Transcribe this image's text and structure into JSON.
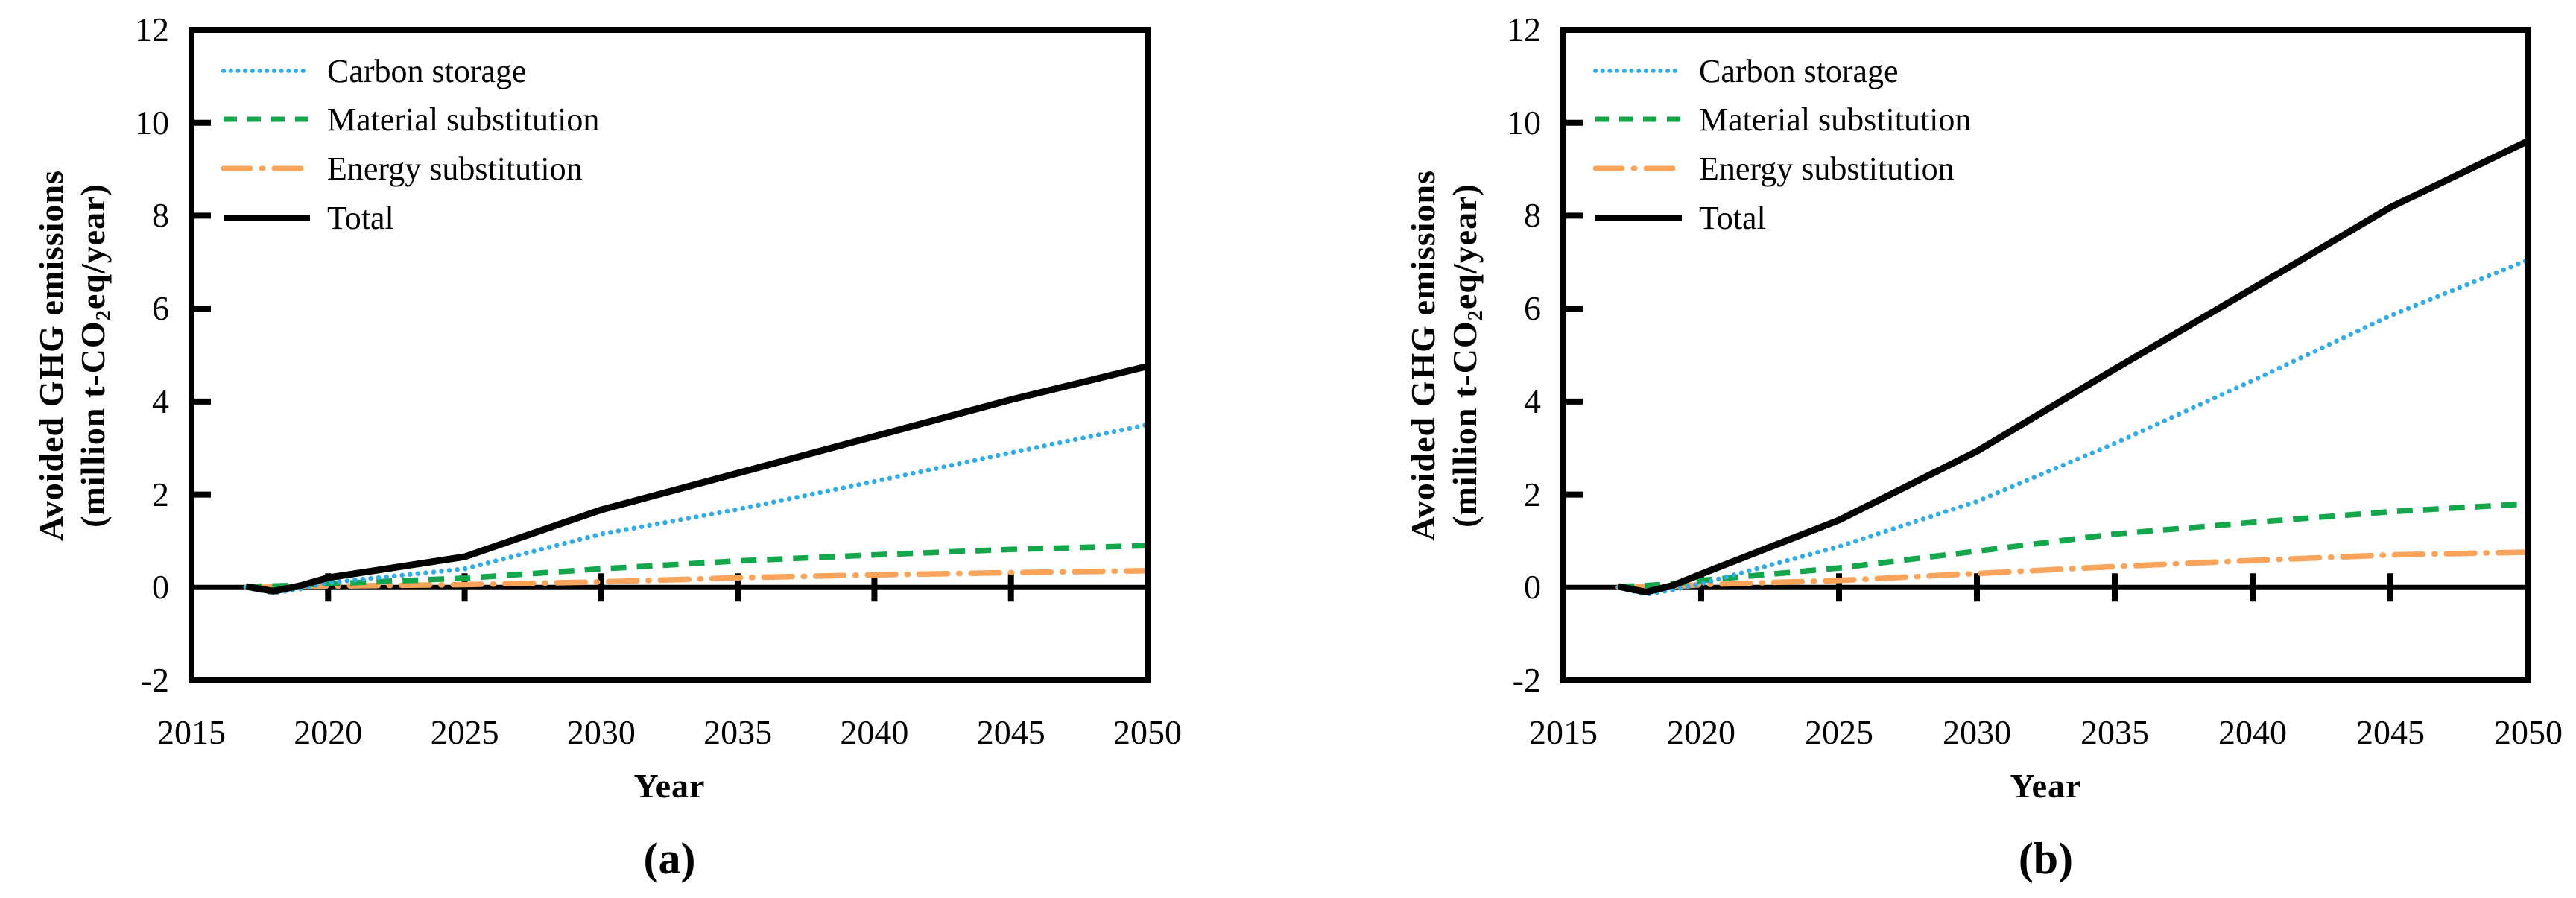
{
  "figure": {
    "y_axis_title_line1": "Avoided GHG emissions",
    "y_axis_title_line2_prefix": "(million t-CO",
    "y_axis_title_line2_sub": "2",
    "y_axis_title_line2_suffix": "eq/year)",
    "x_axis_title": "Year",
    "y_ticks": [
      12,
      10,
      8,
      6,
      4,
      2,
      0,
      -2
    ],
    "x_ticks": [
      2015,
      2020,
      2025,
      2030,
      2035,
      2040,
      2045,
      2050
    ]
  },
  "legend": {
    "position": "top-left-inside",
    "items": [
      {
        "key": "carbon",
        "label": "Carbon storage",
        "color": "#33ACE3"
      },
      {
        "key": "material",
        "label": "Material substitution",
        "color": "#13A64B"
      },
      {
        "key": "energy",
        "label": "Energy substitution",
        "color": "#F9A45A"
      },
      {
        "key": "total",
        "label": "Total",
        "color": "#000000"
      }
    ]
  },
  "chart_data": [
    {
      "type": "line",
      "panel_label": "(a)",
      "xlabel": "Year",
      "ylabel": "Avoided GHG emissions (million t-CO2eq/year)",
      "xlim": [
        2015,
        2050
      ],
      "ylim": [
        -2,
        12
      ],
      "grid": false,
      "x": [
        2017,
        2018,
        2019,
        2020,
        2025,
        2030,
        2035,
        2040,
        2045,
        2050
      ],
      "series": [
        {
          "name": "Carbon storage",
          "key": "carbon",
          "color": "#33ACE3",
          "values": [
            0,
            -0.12,
            -0.03,
            0.1,
            0.4,
            1.15,
            1.68,
            2.28,
            2.9,
            3.5
          ]
        },
        {
          "name": "Material substitution",
          "key": "material",
          "color": "#13A64B",
          "values": [
            0.02,
            0.03,
            0.05,
            0.08,
            0.2,
            0.4,
            0.57,
            0.7,
            0.82,
            0.9
          ]
        },
        {
          "name": "Energy substitution",
          "key": "energy",
          "color": "#F9A45A",
          "values": [
            0,
            0.01,
            0.02,
            0.03,
            0.06,
            0.12,
            0.21,
            0.27,
            0.32,
            0.36
          ]
        },
        {
          "name": "Total",
          "key": "total",
          "color": "#000000",
          "values": [
            0.02,
            -0.08,
            0.04,
            0.21,
            0.66,
            1.67,
            2.46,
            3.25,
            4.04,
            4.76
          ]
        }
      ]
    },
    {
      "type": "line",
      "panel_label": "(b)",
      "xlabel": "Year",
      "ylabel": "Avoided GHG emissions (million t-CO2eq/year)",
      "xlim": [
        2015,
        2050
      ],
      "ylim": [
        -2,
        12
      ],
      "grid": false,
      "x": [
        2017,
        2018,
        2019,
        2020,
        2025,
        2030,
        2035,
        2040,
        2045,
        2050
      ],
      "series": [
        {
          "name": "Carbon storage",
          "key": "carbon",
          "color": "#33ACE3",
          "values": [
            0,
            -0.15,
            -0.05,
            0.08,
            0.88,
            1.85,
            3.1,
            4.45,
            5.85,
            7.05
          ]
        },
        {
          "name": "Material substitution",
          "key": "material",
          "color": "#13A64B",
          "values": [
            0.02,
            0.04,
            0.08,
            0.15,
            0.42,
            0.78,
            1.15,
            1.4,
            1.63,
            1.8
          ]
        },
        {
          "name": "Energy substitution",
          "key": "energy",
          "color": "#F9A45A",
          "values": [
            0,
            0.01,
            0.02,
            0.06,
            0.15,
            0.3,
            0.45,
            0.58,
            0.7,
            0.76
          ]
        },
        {
          "name": "Total",
          "key": "total",
          "color": "#000000",
          "values": [
            0.02,
            -0.1,
            0.05,
            0.29,
            1.45,
            2.93,
            4.7,
            6.43,
            8.18,
            9.61
          ]
        }
      ]
    }
  ]
}
